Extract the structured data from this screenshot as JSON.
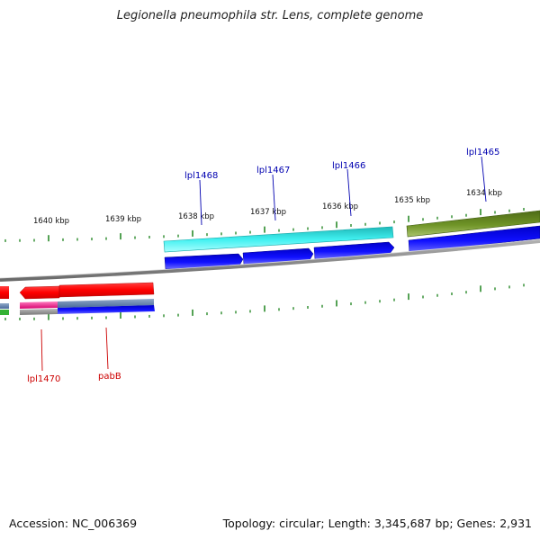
{
  "header": {
    "title": "Legionella pneumophila str. Lens, complete genome"
  },
  "footer": {
    "accession": "Accession: NC_006369",
    "summary": "Topology: circular; Length: 3,345,687 bp; Genes: 2,931"
  },
  "scale_labels": [
    "1640 kbp",
    "1639 kbp",
    "1638 kbp",
    "1637 kbp",
    "1636 kbp",
    "1635 kbp",
    "1634 kbp"
  ],
  "gene_labels_forward": [
    "lpl1468",
    "lpl1467",
    "lpl1466",
    "lpl1465"
  ],
  "gene_labels_reverse": [
    "lpl1470",
    "pabB"
  ],
  "colors": {
    "forward_label": "#0000b0",
    "reverse_label": "#cc0000",
    "tick": "#2a8a2a",
    "backbone": "#8a8a8a",
    "cds_forward": "#0a0ae0",
    "cds_reverse": "#ff1010",
    "gene_cyan": "#2ee6e6",
    "gene_olive": "#6b8e23"
  }
}
